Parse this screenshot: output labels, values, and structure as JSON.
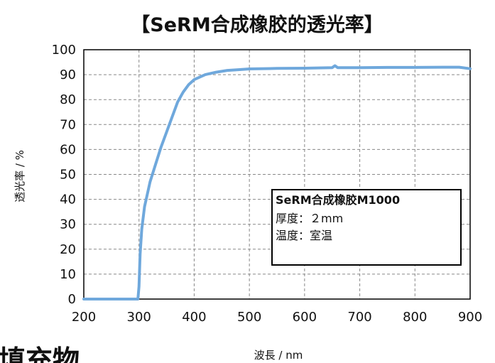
{
  "chart_data": {
    "type": "line",
    "title": "【SeRM合成橡胶的透光率】",
    "xlabel": "波長 / nm",
    "ylabel": "透光率 / %",
    "xlim": [
      200,
      900
    ],
    "ylim": [
      0,
      100
    ],
    "xticks": [
      200,
      300,
      400,
      500,
      600,
      700,
      800,
      900
    ],
    "yticks": [
      0,
      10,
      20,
      30,
      40,
      50,
      60,
      70,
      80,
      90,
      100
    ],
    "grid": true,
    "legend_position": "center-right",
    "line_color": "#6fa8dc",
    "series": [
      {
        "x": [
          200,
          250,
          298,
          300,
          302,
          305,
          310,
          315,
          320,
          330,
          340,
          350,
          360,
          370,
          380,
          390,
          400,
          420,
          440,
          460,
          480,
          500,
          550,
          600,
          650,
          655,
          660,
          700,
          750,
          800,
          850,
          880,
          900
        ],
        "y": [
          0,
          0,
          0,
          5,
          18,
          28,
          37,
          42,
          47,
          54,
          61,
          67,
          73,
          79,
          83,
          86,
          88,
          90,
          91,
          91.7,
          92,
          92.3,
          92.5,
          92.6,
          92.8,
          93.6,
          92.8,
          92.8,
          92.9,
          92.9,
          93,
          93,
          92.4
        ]
      }
    ],
    "annotation_box": {
      "title": "SeRM合成橡胶M1000",
      "lines": [
        "厚度：２mm",
        "温度：室温"
      ]
    }
  },
  "bottom_cut_text": "填充物"
}
